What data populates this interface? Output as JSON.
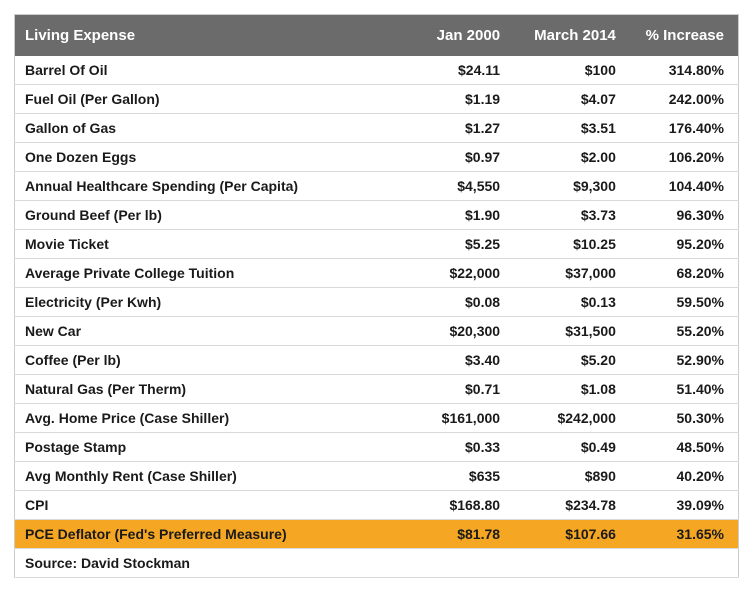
{
  "table": {
    "columns": [
      {
        "key": "item",
        "label": "Living Expense",
        "align": "left"
      },
      {
        "key": "jan2000",
        "label": "Jan 2000",
        "align": "right"
      },
      {
        "key": "mar2014",
        "label": "March 2014",
        "align": "right"
      },
      {
        "key": "pct",
        "label": "% Increase",
        "align": "right"
      }
    ],
    "column_widths_pct": [
      54,
      15,
      16,
      15
    ],
    "header_bg": "#6b6b6b",
    "header_fg": "#ffffff",
    "row_border_color": "#d9d9d9",
    "highlight_bg": "#f5a623",
    "body_font_size_pt": 10.5,
    "header_font_size_pt": 11,
    "rows": [
      {
        "item": "Barrel Of Oil",
        "jan2000": "$24.11",
        "mar2014": "$100",
        "pct": "314.80%",
        "highlight": false
      },
      {
        "item": "Fuel Oil (Per Gallon)",
        "jan2000": "$1.19",
        "mar2014": "$4.07",
        "pct": "242.00%",
        "highlight": false
      },
      {
        "item": "Gallon of Gas",
        "jan2000": "$1.27",
        "mar2014": "$3.51",
        "pct": "176.40%",
        "highlight": false
      },
      {
        "item": "One Dozen Eggs",
        "jan2000": "$0.97",
        "mar2014": "$2.00",
        "pct": "106.20%",
        "highlight": false
      },
      {
        "item": "Annual Healthcare Spending (Per Capita)",
        "jan2000": "$4,550",
        "mar2014": "$9,300",
        "pct": "104.40%",
        "highlight": false
      },
      {
        "item": "Ground Beef (Per lb)",
        "jan2000": "$1.90",
        "mar2014": "$3.73",
        "pct": "96.30%",
        "highlight": false
      },
      {
        "item": "Movie Ticket",
        "jan2000": "$5.25",
        "mar2014": "$10.25",
        "pct": "95.20%",
        "highlight": false
      },
      {
        "item": "Average Private College Tuition",
        "jan2000": "$22,000",
        "mar2014": "$37,000",
        "pct": "68.20%",
        "highlight": false
      },
      {
        "item": "Electricity (Per Kwh)",
        "jan2000": "$0.08",
        "mar2014": "$0.13",
        "pct": "59.50%",
        "highlight": false
      },
      {
        "item": "New Car",
        "jan2000": "$20,300",
        "mar2014": "$31,500",
        "pct": "55.20%",
        "highlight": false
      },
      {
        "item": "Coffee (Per lb)",
        "jan2000": "$3.40",
        "mar2014": "$5.20",
        "pct": "52.90%",
        "highlight": false
      },
      {
        "item": "Natural Gas (Per Therm)",
        "jan2000": "$0.71",
        "mar2014": "$1.08",
        "pct": "51.40%",
        "highlight": false
      },
      {
        "item": "Avg. Home Price (Case Shiller)",
        "jan2000": "$161,000",
        "mar2014": "$242,000",
        "pct": "50.30%",
        "highlight": false
      },
      {
        "item": "Postage Stamp",
        "jan2000": "$0.33",
        "mar2014": "$0.49",
        "pct": "48.50%",
        "highlight": false
      },
      {
        "item": "Avg Monthly Rent (Case Shiller)",
        "jan2000": "$635",
        "mar2014": "$890",
        "pct": "40.20%",
        "highlight": false
      },
      {
        "item": "CPI",
        "jan2000": "$168.80",
        "mar2014": "$234.78",
        "pct": "39.09%",
        "highlight": false
      },
      {
        "item": "PCE Deflator (Fed's Preferred Measure)",
        "jan2000": "$81.78",
        "mar2014": "$107.66",
        "pct": "31.65%",
        "highlight": true
      }
    ],
    "source_label": "Source: David Stockman"
  }
}
